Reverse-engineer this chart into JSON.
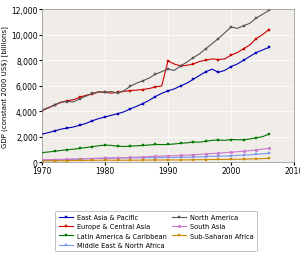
{
  "title": "",
  "ylabel": "GDP (constant 2000 US$) [billions]",
  "xlabel": "",
  "xlim": [
    1970,
    2010
  ],
  "ylim": [
    0,
    12000
  ],
  "yticks": [
    0,
    2000,
    4000,
    6000,
    8000,
    10000,
    12000
  ],
  "xticks": [
    1970,
    1980,
    1990,
    2000,
    2010
  ],
  "series": {
    "East Asia & Pacific": {
      "color": "#0000bb",
      "marker": "s",
      "values_x": [
        1970,
        1971,
        1972,
        1973,
        1974,
        1975,
        1976,
        1977,
        1978,
        1979,
        1980,
        1981,
        1982,
        1983,
        1984,
        1985,
        1986,
        1987,
        1988,
        1989,
        1990,
        1991,
        1992,
        1993,
        1994,
        1995,
        1996,
        1997,
        1998,
        1999,
        2000,
        2001,
        2002,
        2003,
        2004,
        2005,
        2006
      ],
      "values_y": [
        2200,
        2320,
        2450,
        2590,
        2680,
        2760,
        2900,
        3050,
        3250,
        3420,
        3550,
        3680,
        3800,
        3950,
        4180,
        4380,
        4600,
        4850,
        5150,
        5400,
        5600,
        5750,
        5980,
        6200,
        6500,
        6800,
        7100,
        7300,
        7050,
        7200,
        7500,
        7700,
        8000,
        8300,
        8600,
        8800,
        9000
      ]
    },
    "Europe & Central Asia": {
      "color": "#cc0000",
      "marker": "s",
      "values_x": [
        1970,
        1971,
        1972,
        1973,
        1974,
        1975,
        1976,
        1977,
        1978,
        1979,
        1980,
        1981,
        1982,
        1983,
        1984,
        1985,
        1986,
        1987,
        1988,
        1989,
        1990,
        1991,
        1992,
        1993,
        1994,
        1995,
        1996,
        1997,
        1998,
        1999,
        2000,
        2001,
        2002,
        2003,
        2004,
        2005,
        2006
      ],
      "values_y": [
        4050,
        4250,
        4480,
        4680,
        4820,
        4900,
        5100,
        5250,
        5350,
        5500,
        5480,
        5420,
        5480,
        5550,
        5620,
        5650,
        5700,
        5780,
        5900,
        5980,
        7950,
        7700,
        7550,
        7600,
        7700,
        7900,
        8000,
        8100,
        8050,
        8100,
        8400,
        8600,
        8900,
        9200,
        9700,
        10000,
        10400
      ]
    },
    "Latin America & Caribbean": {
      "color": "#007700",
      "marker": "s",
      "values_x": [
        1970,
        1971,
        1972,
        1973,
        1974,
        1975,
        1976,
        1977,
        1978,
        1979,
        1980,
        1981,
        1982,
        1983,
        1984,
        1985,
        1986,
        1987,
        1988,
        1989,
        1990,
        1991,
        1992,
        1993,
        1994,
        1995,
        1996,
        1997,
        1998,
        1999,
        2000,
        2001,
        2002,
        2003,
        2004,
        2005,
        2006
      ],
      "values_y": [
        750,
        800,
        860,
        920,
        980,
        1020,
        1080,
        1150,
        1220,
        1290,
        1340,
        1320,
        1250,
        1230,
        1260,
        1290,
        1310,
        1350,
        1390,
        1380,
        1390,
        1430,
        1480,
        1520,
        1580,
        1570,
        1640,
        1720,
        1740,
        1710,
        1780,
        1760,
        1760,
        1820,
        1920,
        2000,
        2200
      ]
    },
    "Middle East & North Africa": {
      "color": "#7799ee",
      "marker": "s",
      "values_x": [
        1970,
        1971,
        1972,
        1973,
        1974,
        1975,
        1976,
        1977,
        1978,
        1979,
        1980,
        1981,
        1982,
        1983,
        1984,
        1985,
        1986,
        1987,
        1988,
        1989,
        1990,
        1991,
        1992,
        1993,
        1994,
        1995,
        1996,
        1997,
        1998,
        1999,
        2000,
        2001,
        2002,
        2003,
        2004,
        2005,
        2006
      ],
      "values_y": [
        130,
        145,
        160,
        180,
        210,
        230,
        250,
        275,
        290,
        310,
        330,
        330,
        330,
        335,
        340,
        345,
        345,
        350,
        360,
        365,
        370,
        370,
        380,
        390,
        400,
        420,
        440,
        460,
        470,
        480,
        510,
        530,
        560,
        580,
        620,
        660,
        700
      ]
    },
    "North America": {
      "color": "#555555",
      "marker": "s",
      "values_x": [
        1970,
        1971,
        1972,
        1973,
        1974,
        1975,
        1976,
        1977,
        1978,
        1979,
        1980,
        1981,
        1982,
        1983,
        1984,
        1985,
        1986,
        1987,
        1988,
        1989,
        1990,
        1991,
        1992,
        1993,
        1994,
        1995,
        1996,
        1997,
        1998,
        1999,
        2000,
        2001,
        2002,
        2003,
        2004,
        2005,
        2006
      ],
      "values_y": [
        4100,
        4280,
        4500,
        4720,
        4760,
        4730,
        4980,
        5180,
        5400,
        5530,
        5490,
        5540,
        5430,
        5600,
        5950,
        6200,
        6380,
        6600,
        6900,
        7100,
        7300,
        7200,
        7550,
        7850,
        8200,
        8500,
        8900,
        9300,
        9700,
        10150,
        10600,
        10500,
        10700,
        10900,
        11300,
        11600,
        11900
      ]
    },
    "South Asia": {
      "color": "#cc77cc",
      "marker": "o",
      "values_x": [
        1970,
        1971,
        1972,
        1973,
        1974,
        1975,
        1976,
        1977,
        1978,
        1979,
        1980,
        1981,
        1982,
        1983,
        1984,
        1985,
        1986,
        1987,
        1988,
        1989,
        1990,
        1991,
        1992,
        1993,
        1994,
        1995,
        1996,
        1997,
        1998,
        1999,
        2000,
        2001,
        2002,
        2003,
        2004,
        2005,
        2006
      ],
      "values_y": [
        200,
        205,
        210,
        225,
        232,
        245,
        258,
        272,
        285,
        300,
        310,
        320,
        335,
        355,
        375,
        395,
        415,
        438,
        460,
        480,
        500,
        510,
        530,
        555,
        585,
        615,
        650,
        680,
        710,
        745,
        785,
        820,
        865,
        910,
        970,
        1020,
        1080
      ]
    },
    "Sub-Saharan Africa": {
      "color": "#cc8800",
      "marker": "s",
      "values_x": [
        1970,
        1971,
        1972,
        1973,
        1974,
        1975,
        1976,
        1977,
        1978,
        1979,
        1980,
        1981,
        1982,
        1983,
        1984,
        1985,
        1986,
        1987,
        1988,
        1989,
        1990,
        1991,
        1992,
        1993,
        1994,
        1995,
        1996,
        1997,
        1998,
        1999,
        2000,
        2001,
        2002,
        2003,
        2004,
        2005,
        2006
      ],
      "values_y": [
        100,
        105,
        110,
        118,
        125,
        130,
        135,
        142,
        148,
        155,
        160,
        158,
        155,
        155,
        157,
        160,
        163,
        168,
        173,
        175,
        178,
        178,
        178,
        182,
        188,
        196,
        204,
        212,
        215,
        218,
        225,
        232,
        240,
        252,
        268,
        284,
        300
      ]
    }
  },
  "legend_order": [
    "East Asia & Pacific",
    "Europe & Central Asia",
    "Latin America & Caribbean",
    "Middle East & North Africa",
    "North America",
    "South Asia",
    "Sub-Saharan Africa"
  ],
  "legend_cols": 2,
  "bg_color": "#f0ece8"
}
